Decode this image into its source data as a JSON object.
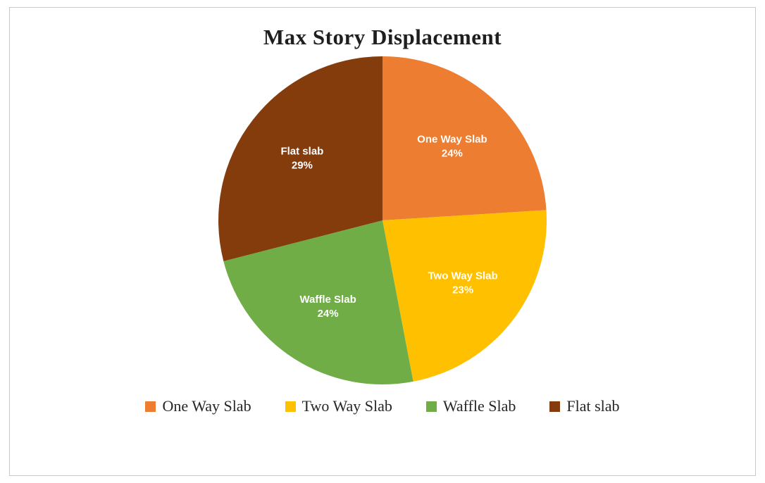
{
  "chart_data": {
    "type": "pie",
    "title": "Max Story Displacement",
    "categories": [
      "One Way Slab",
      "Two Way Slab",
      "Waffle Slab",
      "Flat slab"
    ],
    "values": [
      24,
      23,
      24,
      29
    ],
    "unit": "%",
    "colors": [
      "#ED7D31",
      "#FFC000",
      "#70AD47",
      "#843C0C"
    ],
    "start_angle_deg": 0,
    "direction": "clockwise",
    "data_labels": [
      "One Way Slab 24%",
      "Two Way Slab 23%",
      "Waffle Slab 24%",
      "Flat slab 29%"
    ],
    "legend_position": "bottom",
    "legend": [
      "One Way Slab",
      "Two Way Slab",
      "Waffle Slab",
      "Flat slab"
    ],
    "grid": false
  }
}
